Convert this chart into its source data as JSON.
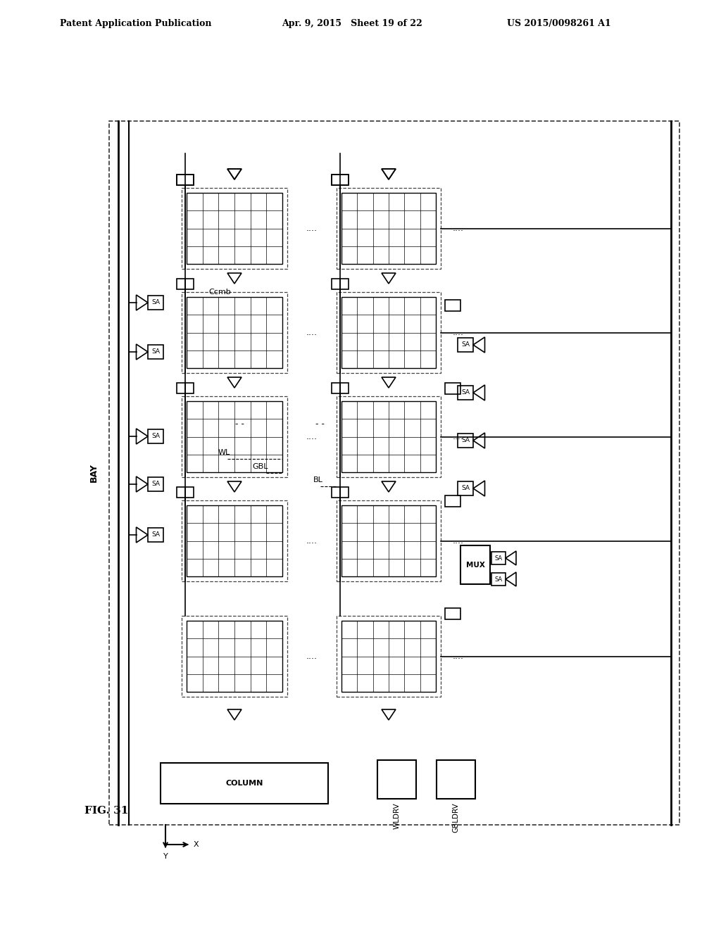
{
  "title_left": "Patent Application Publication",
  "title_center": "Apr. 9, 2015   Sheet 19 of 22",
  "title_right": "US 2015/0098261 A1",
  "fig_label": "FIG. 31",
  "bg_color": "#ffffff",
  "line_color": "#000000",
  "dashed_color": "#555555"
}
